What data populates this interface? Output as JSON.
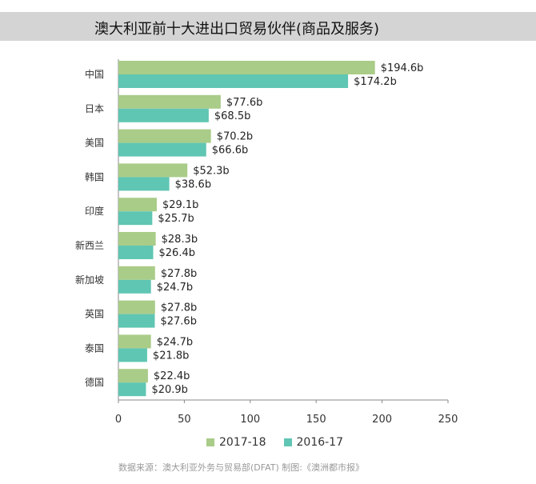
{
  "title": "澳大利亚前十大进出口贸易伙伴(商品及服务)",
  "source": "数据来源：澳大利亚外务与贸易部(DFAT)  制图:《澳洲都市报》",
  "colors": {
    "series_2017_18": "#a9cc88",
    "series_2016_17": "#5fc6b3",
    "axis": "#888888"
  },
  "chart_data": {
    "type": "bar",
    "orientation": "horizontal",
    "title": "澳大利亚前十大进出口贸易伙伴(商品及服务)",
    "categories": [
      "中国",
      "日本",
      "美国",
      "韩国",
      "印度",
      "新西兰",
      "新加坡",
      "英国",
      "泰国",
      "德国"
    ],
    "series": [
      {
        "name": "2017-18",
        "values": [
          194.6,
          77.6,
          70.2,
          52.3,
          29.1,
          28.3,
          27.8,
          27.8,
          24.7,
          22.4
        ],
        "labels": [
          "$194.6b",
          "$77.6b",
          "$70.2b",
          "$52.3b",
          "$29.1b",
          "$28.3b",
          "$27.8b",
          "$27.8b",
          "$24.7b",
          "$22.4b"
        ]
      },
      {
        "name": "2016-17",
        "values": [
          174.2,
          68.5,
          66.6,
          38.6,
          25.7,
          26.4,
          24.7,
          27.6,
          21.8,
          20.9
        ],
        "labels": [
          "$174.2b",
          "$68.5b",
          "$66.6b",
          "$38.6b",
          "$25.7b",
          "$26.4b",
          "$24.7b",
          "$27.6b",
          "$21.8b",
          "$20.9b"
        ]
      }
    ],
    "xlim": [
      0,
      250
    ],
    "xticks": [
      "0",
      "50",
      "100",
      "150",
      "200",
      "250"
    ],
    "grid": false,
    "legend_position": "bottom"
  }
}
